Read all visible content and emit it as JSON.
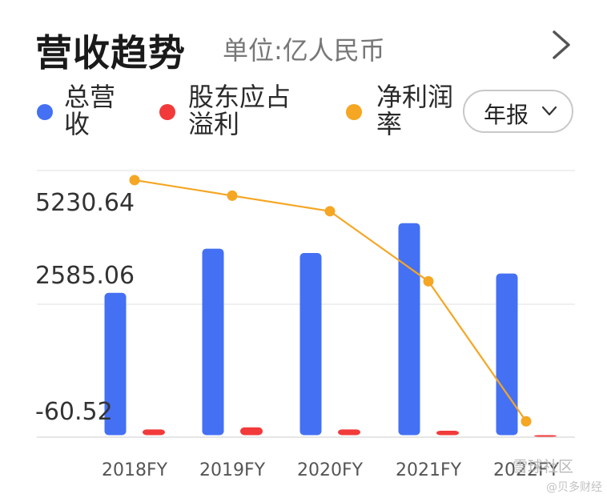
{
  "header": {
    "title": "营收趋势",
    "unit": "单位:亿人民币"
  },
  "legend": {
    "revenue": "总营收",
    "minority": "股东应占溢利",
    "margin": "净利润率"
  },
  "period_button": {
    "label": "年报"
  },
  "colors": {
    "revenue": "#4470f4",
    "minority": "#f23a3a",
    "margin": "#f5a623"
  },
  "icons": {
    "more": "chevron-right-icon",
    "dropdown": "chevron-down-icon"
  },
  "chart_data": {
    "type": "bar",
    "categories": [
      "2018FY",
      "2019FY",
      "2020FY",
      "2021FY",
      "2022FY"
    ],
    "y_ticks": [
      "5230.64",
      "2585.06",
      "-60.52"
    ],
    "ylim": [
      -60.52,
      7876.22
    ],
    "series": [
      {
        "name": "总营收",
        "type": "bar",
        "values": [
          4235,
          5550,
          5420,
          6310,
          4810
        ]
      },
      {
        "name": "股东应占溢利",
        "type": "bar",
        "values": [
          170,
          230,
          170,
          130,
          -30
        ]
      },
      {
        "name": "净利润率",
        "type": "line",
        "values": [
          0.96,
          0.9,
          0.84,
          0.57,
          0.03
        ]
      }
    ]
  },
  "watermark": {
    "line1": "雪球社区",
    "line2": "@贝多财经"
  }
}
